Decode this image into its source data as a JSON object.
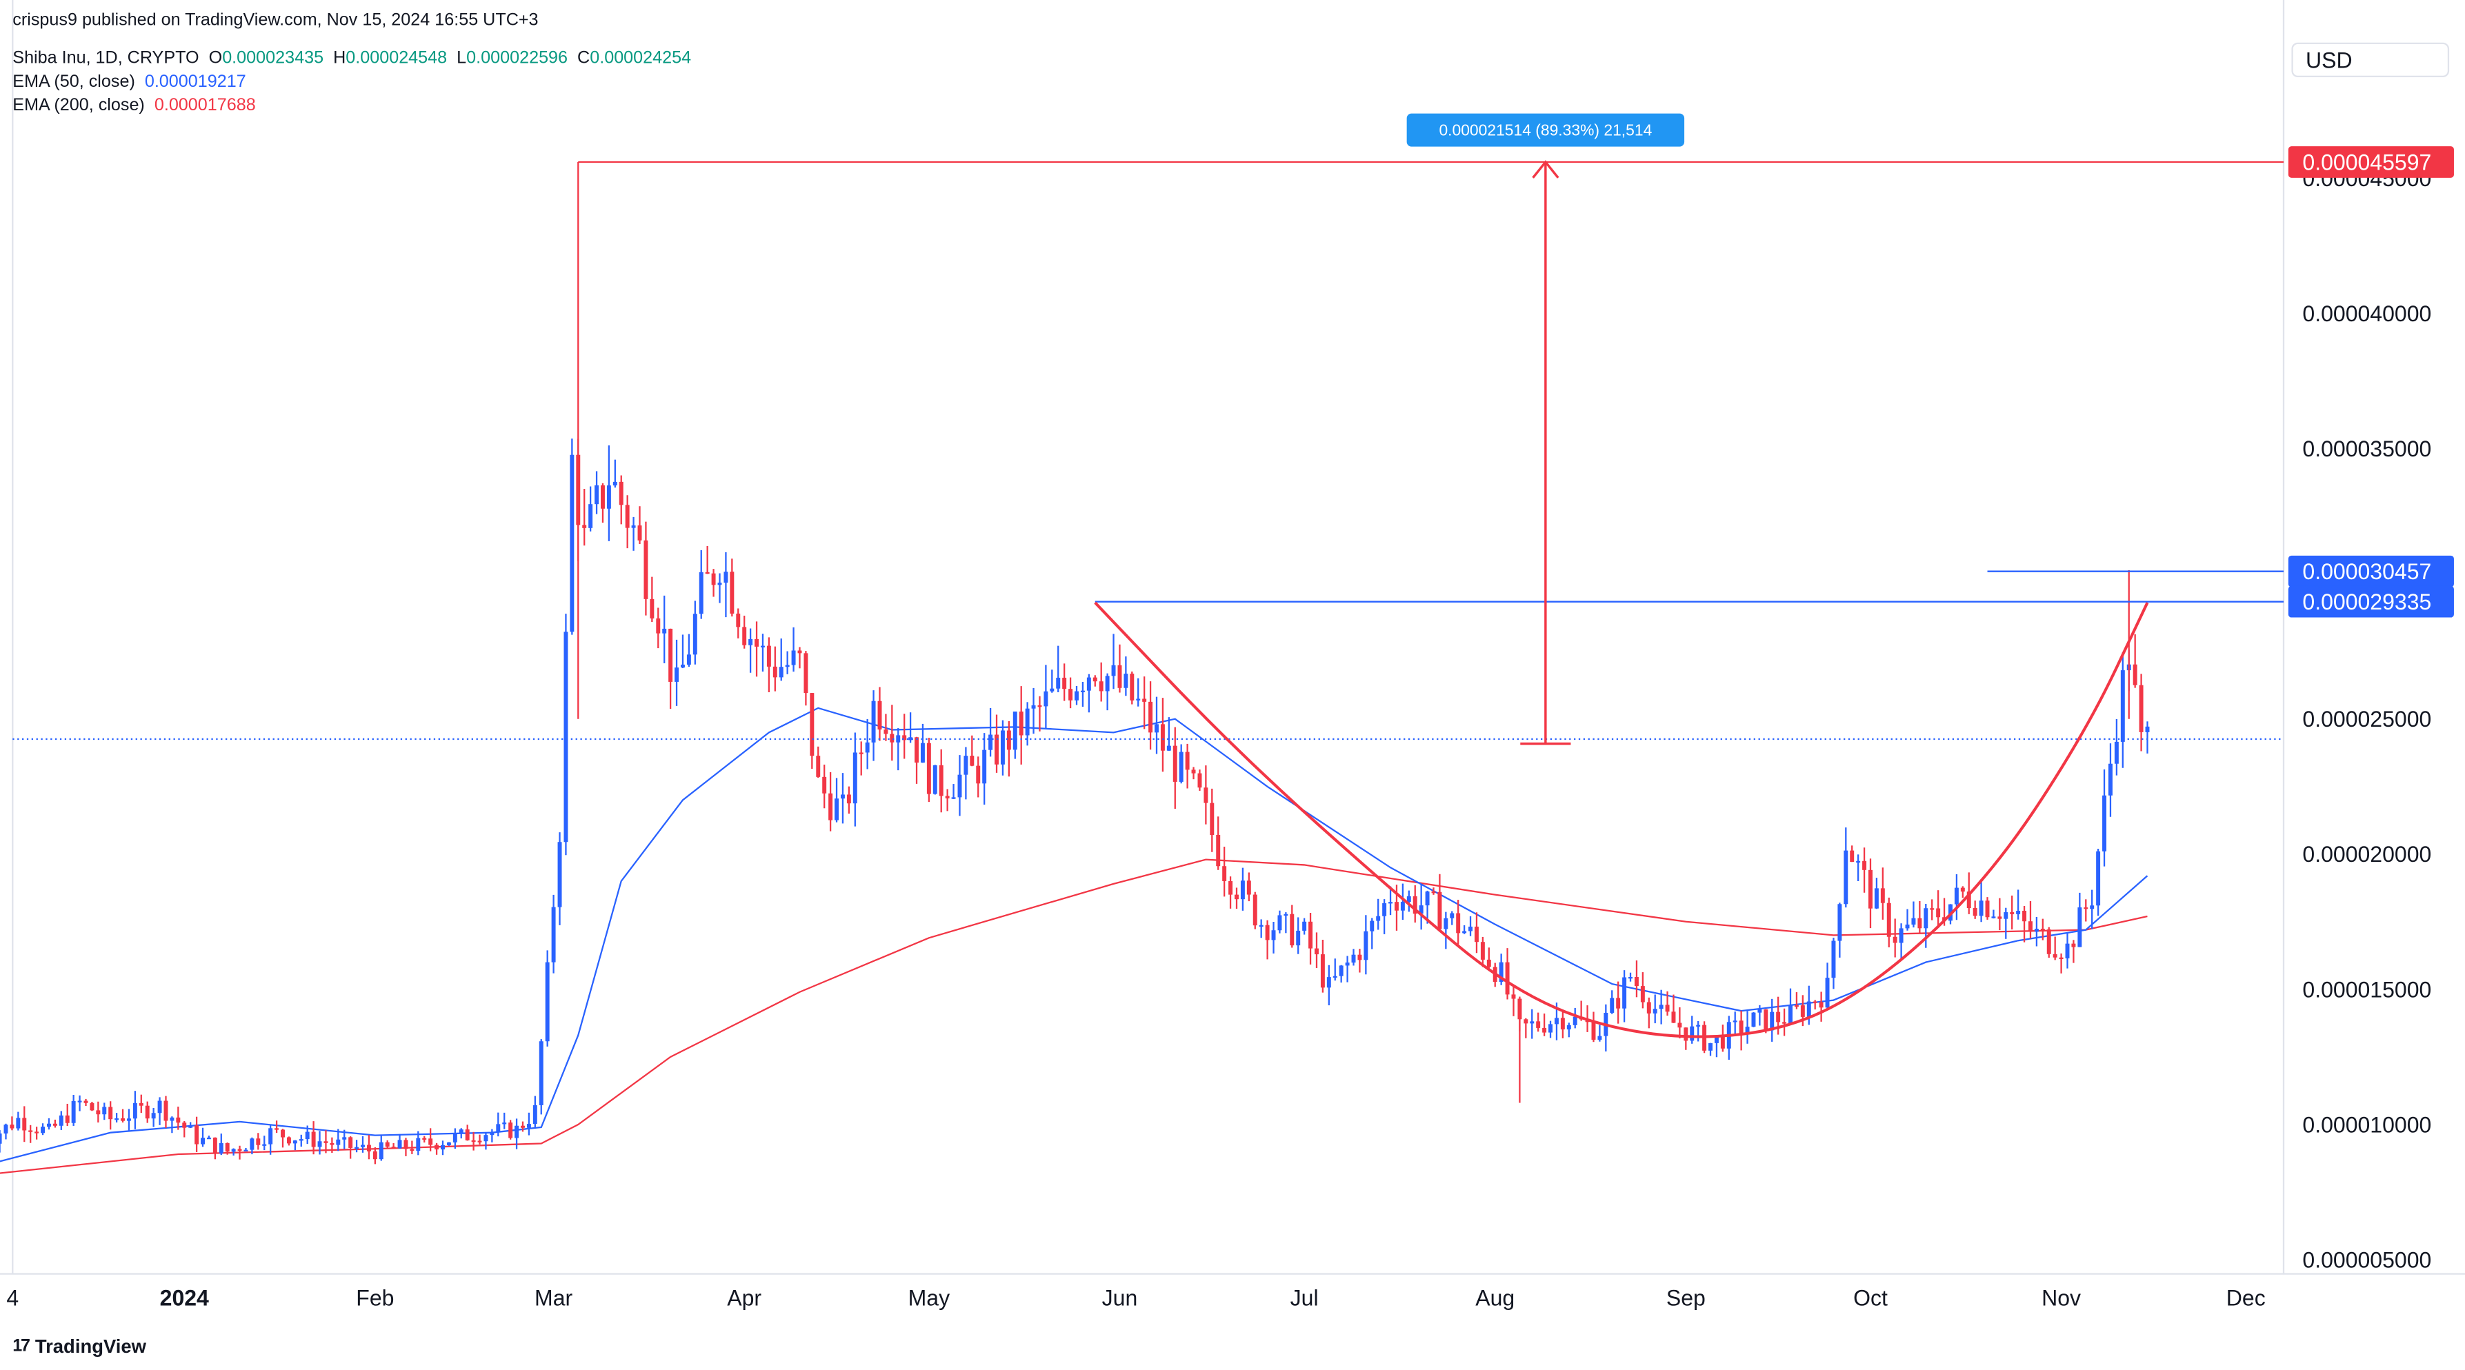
{
  "header": {
    "published": "crispus9 published on TradingView.com, Nov 15, 2024 16:55 UTC+3",
    "symbol": "Shiba Inu, 1D, CRYPTO",
    "o_label": "O",
    "o_value": "0.000023435",
    "h_label": "H",
    "h_value": "0.000024548",
    "l_label": "L",
    "l_value": "0.000022596",
    "c_label": "C",
    "c_value": "0.000024254",
    "ema50_label": "EMA (50, close)",
    "ema50_value": "0.000019217",
    "ema200_label": "EMA (200, close)",
    "ema200_value": "0.000017688"
  },
  "currency": "USD",
  "brand": "TradingView",
  "colors": {
    "up": "#089981",
    "down": "#f23645",
    "ema50": "#2962ff",
    "ema200": "#f23645",
    "candle_up_fill": "#2962ff",
    "candle_down_fill": "#f23645"
  },
  "chart_data": {
    "type": "candlestick",
    "symbol": "Shiba Inu, 1D, CRYPTO",
    "y_scale": "linear",
    "y_ticks": [
      "0.000045000",
      "0.000040000",
      "0.000035000",
      "0.000030000",
      "0.000025000",
      "0.000020000",
      "0.000015000",
      "0.000010000",
      "0.000005000"
    ],
    "y_tick_values": [
      4.5e-05,
      4e-05,
      3.5e-05,
      3e-05,
      2.5e-05,
      2e-05,
      1.5e-05,
      1e-05,
      5e-06
    ],
    "x_ticks": [
      "4",
      "2024",
      "Feb",
      "Mar",
      "Apr",
      "May",
      "Jun",
      "Jul",
      "Aug",
      "Sep",
      "Oct",
      "Nov",
      "Dec"
    ],
    "x_tick_dates": [
      "2023-12-04",
      "2024-01-01",
      "2024-02-01",
      "2024-03-01",
      "2024-04-01",
      "2024-05-01",
      "2024-06-01",
      "2024-07-01",
      "2024-08-01",
      "2024-09-01",
      "2024-10-01",
      "2024-11-01",
      "2024-12-01"
    ],
    "ylim": [
      3.5e-06,
      4.85e-05
    ],
    "price_tags": [
      {
        "label": "0.000045597",
        "value": 4.5597e-05,
        "color": "#f23645"
      },
      {
        "label": "0.000030457",
        "value": 3.0457e-05,
        "color": "#2962ff"
      },
      {
        "label": "0.000029335",
        "value": 2.9335e-05,
        "color": "#2962ff"
      }
    ],
    "current_price": 2.4254e-05,
    "measure": {
      "label": "0.000021514 (89.33%) 21,514",
      "from": 2.4083e-05,
      "to": 4.5597e-05
    },
    "resistance_lines": [
      {
        "value": 4.5597e-05,
        "from": "2024-03-05",
        "to": "2024-11-15",
        "color": "#f23645"
      },
      {
        "value": 2.9335e-05,
        "from": "2024-05-28",
        "to": "2024-11-15",
        "color": "#2962ff"
      },
      {
        "value": 3.0457e-05,
        "from": "2024-10-20",
        "to": "2024-11-15",
        "color": "#2962ff"
      }
    ],
    "cup_curve": {
      "color": "#f23645",
      "points": [
        [
          "2024-05-28",
          2.93e-05
        ],
        [
          "2024-06-20",
          2.38e-05
        ],
        [
          "2024-07-15",
          1.87e-05
        ],
        [
          "2024-08-05",
          1.47e-05
        ],
        [
          "2024-08-25",
          1.32e-05
        ],
        [
          "2024-09-15",
          1.33e-05
        ],
        [
          "2024-10-01",
          1.5e-05
        ],
        [
          "2024-10-20",
          1.9e-05
        ],
        [
          "2024-11-05",
          2.45e-05
        ],
        [
          "2024-11-15",
          2.93e-05
        ]
      ]
    },
    "ema50_points": [
      [
        "2023-11-28",
        8.4e-06
      ],
      [
        "2023-12-20",
        9.7e-06
      ],
      [
        "2024-01-10",
        1.01e-05
      ],
      [
        "2024-02-01",
        9.6e-06
      ],
      [
        "2024-02-20",
        9.7e-06
      ],
      [
        "2024-02-28",
        9.9e-06
      ],
      [
        "2024-03-05",
        1.33e-05
      ],
      [
        "2024-03-12",
        1.9e-05
      ],
      [
        "2024-03-22",
        2.2e-05
      ],
      [
        "2024-04-05",
        2.45e-05
      ],
      [
        "2024-04-13",
        2.54e-05
      ],
      [
        "2024-04-25",
        2.46e-05
      ],
      [
        "2024-05-15",
        2.47e-05
      ],
      [
        "2024-05-31",
        2.45e-05
      ],
      [
        "2024-06-10",
        2.5e-05
      ],
      [
        "2024-06-25",
        2.25e-05
      ],
      [
        "2024-07-15",
        1.95e-05
      ],
      [
        "2024-08-01",
        1.74e-05
      ],
      [
        "2024-08-20",
        1.52e-05
      ],
      [
        "2024-09-10",
        1.42e-05
      ],
      [
        "2024-09-25",
        1.46e-05
      ],
      [
        "2024-10-10",
        1.6e-05
      ],
      [
        "2024-10-25",
        1.68e-05
      ],
      [
        "2024-11-05",
        1.72e-05
      ],
      [
        "2024-11-15",
        1.92e-05
      ]
    ],
    "ema200_points": [
      [
        "2023-11-28",
        8.1e-06
      ],
      [
        "2023-12-31",
        8.9e-06
      ],
      [
        "2024-02-01",
        9.1e-06
      ],
      [
        "2024-02-28",
        9.3e-06
      ],
      [
        "2024-03-05",
        1e-05
      ],
      [
        "2024-03-20",
        1.25e-05
      ],
      [
        "2024-04-10",
        1.49e-05
      ],
      [
        "2024-05-01",
        1.69e-05
      ],
      [
        "2024-05-31",
        1.89e-05
      ],
      [
        "2024-06-15",
        1.98e-05
      ],
      [
        "2024-07-01",
        1.96e-05
      ],
      [
        "2024-08-01",
        1.85e-05
      ],
      [
        "2024-09-01",
        1.75e-05
      ],
      [
        "2024-09-25",
        1.7e-05
      ],
      [
        "2024-10-15",
        1.71e-05
      ],
      [
        "2024-11-05",
        1.72e-05
      ],
      [
        "2024-11-15",
        1.77e-05
      ]
    ],
    "candle_close_path": [
      [
        "2023-11-28",
        9.1e-06
      ],
      [
        "2023-12-05",
        1.02e-05
      ],
      [
        "2023-12-10",
        9.7e-06
      ],
      [
        "2023-12-15",
        1.08e-05
      ],
      [
        "2023-12-20",
        1.02e-05
      ],
      [
        "2023-12-28",
        1.07e-05
      ],
      [
        "2024-01-03",
        9.5e-06
      ],
      [
        "2024-01-08",
        9e-06
      ],
      [
        "2024-01-15",
        9.7e-06
      ],
      [
        "2024-01-25",
        9.3e-06
      ],
      [
        "2024-02-01",
        9e-06
      ],
      [
        "2024-02-10",
        9.3e-06
      ],
      [
        "2024-02-18",
        9.7e-06
      ],
      [
        "2024-02-24",
        9.8e-06
      ],
      [
        "2024-02-27",
        1.05e-05
      ],
      [
        "2024-02-29",
        1.55e-05
      ],
      [
        "2024-03-02",
        2.1e-05
      ],
      [
        "2024-03-04",
        3.45e-05
      ],
      [
        "2024-03-06",
        3.15e-05
      ],
      [
        "2024-03-10",
        3.4e-05
      ],
      [
        "2024-03-14",
        3.2e-05
      ],
      [
        "2024-03-18",
        2.9e-05
      ],
      [
        "2024-03-21",
        2.6e-05
      ],
      [
        "2024-03-25",
        2.95e-05
      ],
      [
        "2024-03-28",
        3.1e-05
      ],
      [
        "2024-04-01",
        2.85e-05
      ],
      [
        "2024-04-05",
        2.7e-05
      ],
      [
        "2024-04-10",
        2.7e-05
      ],
      [
        "2024-04-13",
        2.25e-05
      ],
      [
        "2024-04-17",
        2.15e-05
      ],
      [
        "2024-04-22",
        2.55e-05
      ],
      [
        "2024-04-28",
        2.45e-05
      ],
      [
        "2024-05-02",
        2.25e-05
      ],
      [
        "2024-05-08",
        2.3e-05
      ],
      [
        "2024-05-15",
        2.45e-05
      ],
      [
        "2024-05-22",
        2.6e-05
      ],
      [
        "2024-05-28",
        2.7e-05
      ],
      [
        "2024-06-04",
        2.55e-05
      ],
      [
        "2024-06-08",
        2.4e-05
      ],
      [
        "2024-06-14",
        2.2e-05
      ],
      [
        "2024-06-18",
        1.95e-05
      ],
      [
        "2024-06-24",
        1.75e-05
      ],
      [
        "2024-07-01",
        1.7e-05
      ],
      [
        "2024-07-05",
        1.5e-05
      ],
      [
        "2024-07-10",
        1.65e-05
      ],
      [
        "2024-07-15",
        1.85e-05
      ],
      [
        "2024-07-22",
        1.8e-05
      ],
      [
        "2024-07-28",
        1.7e-05
      ],
      [
        "2024-08-02",
        1.55e-05
      ],
      [
        "2024-08-05",
        1.35e-05
      ],
      [
        "2024-08-12",
        1.4e-05
      ],
      [
        "2024-08-18",
        1.35e-05
      ],
      [
        "2024-08-23",
        1.55e-05
      ],
      [
        "2024-08-28",
        1.4e-05
      ],
      [
        "2024-09-05",
        1.3e-05
      ],
      [
        "2024-09-12",
        1.38e-05
      ],
      [
        "2024-09-18",
        1.4e-05
      ],
      [
        "2024-09-24",
        1.5e-05
      ],
      [
        "2024-09-27",
        2.05e-05
      ],
      [
        "2024-10-01",
        1.85e-05
      ],
      [
        "2024-10-05",
        1.7e-05
      ],
      [
        "2024-10-10",
        1.75e-05
      ],
      [
        "2024-10-16",
        1.85e-05
      ],
      [
        "2024-10-22",
        1.8e-05
      ],
      [
        "2024-10-28",
        1.7e-05
      ],
      [
        "2024-11-02",
        1.65e-05
      ],
      [
        "2024-11-06",
        1.85e-05
      ],
      [
        "2024-11-10",
        2.5e-05
      ],
      [
        "2024-11-12",
        2.75e-05
      ],
      [
        "2024-11-14",
        2.4e-05
      ],
      [
        "2024-11-15",
        2.43e-05
      ]
    ]
  }
}
